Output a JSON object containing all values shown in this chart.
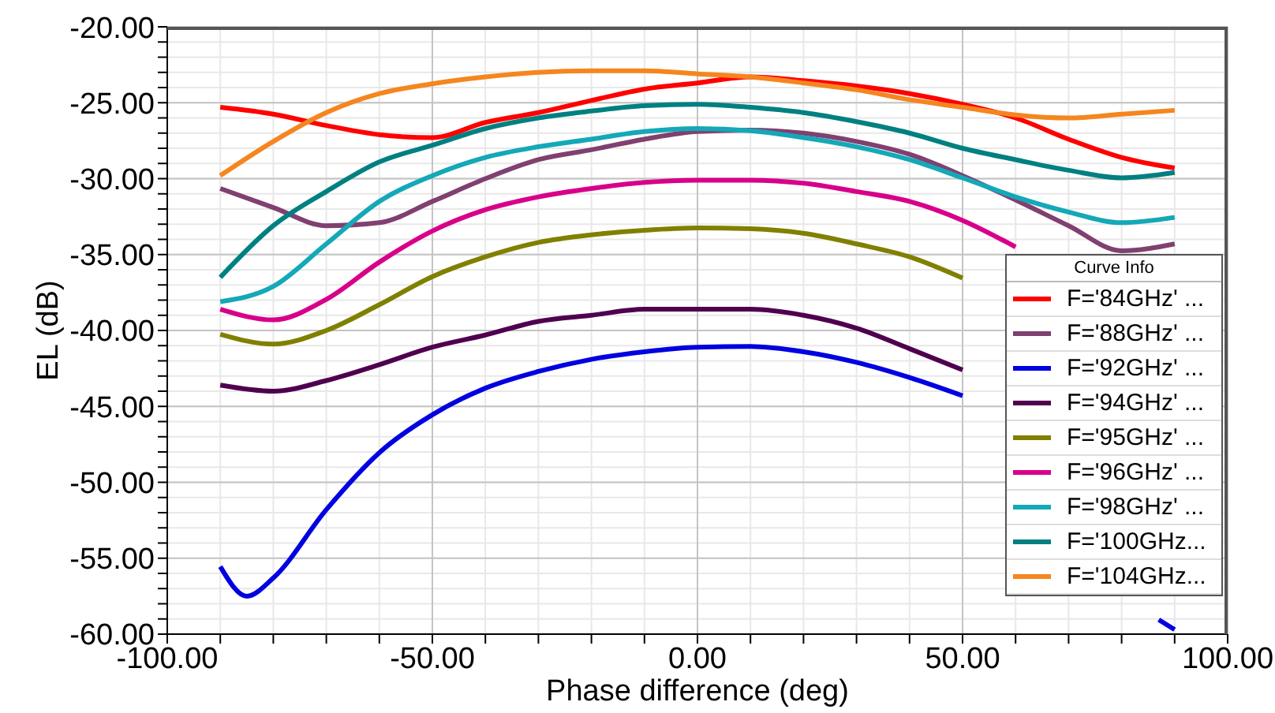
{
  "chart_data": {
    "type": "line",
    "xlabel": "Phase difference (deg)",
    "ylabel": "EL (dB)",
    "legend_title": "Curve Info",
    "legend": "right",
    "grid": true,
    "x": [
      -90,
      -80,
      -70,
      -60,
      -50,
      -40,
      -30,
      -20,
      -10,
      0,
      10,
      20,
      30,
      40,
      50,
      60,
      70,
      80,
      90
    ],
    "xlim": [
      -100,
      100
    ],
    "xticks": [
      {
        "value": -100,
        "label": "-100.00"
      },
      {
        "value": -90,
        "label": null
      },
      {
        "value": -80,
        "label": null
      },
      {
        "value": -70,
        "label": null
      },
      {
        "value": -60,
        "label": null
      },
      {
        "value": -50,
        "label": "-50.00"
      },
      {
        "value": -40,
        "label": null
      },
      {
        "value": -30,
        "label": null
      },
      {
        "value": -20,
        "label": null
      },
      {
        "value": -10,
        "label": null
      },
      {
        "value": 0,
        "label": "0.00"
      },
      {
        "value": 10,
        "label": null
      },
      {
        "value": 20,
        "label": null
      },
      {
        "value": 30,
        "label": null
      },
      {
        "value": 40,
        "label": null
      },
      {
        "value": 50,
        "label": "50.00"
      },
      {
        "value": 60,
        "label": null
      },
      {
        "value": 70,
        "label": null
      },
      {
        "value": 80,
        "label": null
      },
      {
        "value": 90,
        "label": null
      },
      {
        "value": 100,
        "label": "100.00"
      }
    ],
    "ylim": [
      -60,
      -20
    ],
    "yticks": [
      {
        "value": -60,
        "label": "-60.00"
      },
      {
        "value": -59,
        "label": null
      },
      {
        "value": -58,
        "label": null
      },
      {
        "value": -57,
        "label": null
      },
      {
        "value": -56,
        "label": null
      },
      {
        "value": -55,
        "label": "-55.00"
      },
      {
        "value": -54,
        "label": null
      },
      {
        "value": -53,
        "label": null
      },
      {
        "value": -52,
        "label": null
      },
      {
        "value": -51,
        "label": null
      },
      {
        "value": -50,
        "label": "-50.00"
      },
      {
        "value": -49,
        "label": null
      },
      {
        "value": -48,
        "label": null
      },
      {
        "value": -47,
        "label": null
      },
      {
        "value": -46,
        "label": null
      },
      {
        "value": -45,
        "label": "-45.00"
      },
      {
        "value": -44,
        "label": null
      },
      {
        "value": -43,
        "label": null
      },
      {
        "value": -42,
        "label": null
      },
      {
        "value": -41,
        "label": null
      },
      {
        "value": -40,
        "label": "-40.00"
      },
      {
        "value": -39,
        "label": null
      },
      {
        "value": -38,
        "label": null
      },
      {
        "value": -37,
        "label": null
      },
      {
        "value": -36,
        "label": null
      },
      {
        "value": -35,
        "label": "-35.00"
      },
      {
        "value": -34,
        "label": null
      },
      {
        "value": -33,
        "label": null
      },
      {
        "value": -32,
        "label": null
      },
      {
        "value": -31,
        "label": null
      },
      {
        "value": -30,
        "label": "-30.00"
      },
      {
        "value": -29,
        "label": null
      },
      {
        "value": -28,
        "label": null
      },
      {
        "value": -27,
        "label": null
      },
      {
        "value": -26,
        "label": null
      },
      {
        "value": -25,
        "label": "-25.00"
      },
      {
        "value": -24,
        "label": null
      },
      {
        "value": -23,
        "label": null
      },
      {
        "value": -22,
        "label": null
      },
      {
        "value": -21,
        "label": null
      },
      {
        "value": -20,
        "label": "-20.00"
      }
    ],
    "series": [
      {
        "name": "F='84GHz' ...",
        "color": "#ff0000",
        "values": [
          -25.3,
          -25.75,
          -26.5,
          -27.1,
          -27.3,
          -26.3,
          -25.65,
          -24.85,
          -24.1,
          -23.7,
          -23.3,
          -23.55,
          -23.9,
          -24.4,
          -25.1,
          -26.0,
          -27.4,
          -28.6,
          -29.3
        ]
      },
      {
        "name": "F='88GHz' ...",
        "color": "#804070",
        "values": [
          -30.65,
          -31.9,
          -33.1,
          -32.9,
          -31.5,
          -30.0,
          -28.75,
          -28.1,
          -27.4,
          -26.9,
          -26.8,
          -27.0,
          -27.55,
          -28.4,
          -29.8,
          -31.4,
          -33.1,
          -34.75,
          -34.3
        ]
      },
      {
        "name": "F='92GHz' ...",
        "color": "#0000e0",
        "x": [
          -90,
          -85,
          -80,
          -70,
          -60,
          -50,
          -40,
          -30,
          -20,
          -10,
          0,
          10,
          20,
          30,
          40,
          50,
          60,
          87,
          90
        ],
        "values": [
          -55.55,
          -57.5,
          -56.3,
          -51.8,
          -48.05,
          -45.55,
          -43.8,
          -42.7,
          -41.9,
          -41.4,
          -41.1,
          -41.05,
          -41.4,
          -42.1,
          -43.1,
          -44.3,
          null,
          -59.05,
          -59.7
        ]
      },
      {
        "name": "F='94GHz' ...",
        "color": "#4f004f",
        "values": [
          -43.6,
          -44.0,
          -43.3,
          -42.25,
          -41.1,
          -40.3,
          -39.4,
          -39.0,
          -38.6,
          -38.6,
          -38.6,
          -39.0,
          -39.85,
          -41.2,
          -42.6,
          null,
          null,
          null,
          null
        ]
      },
      {
        "name": "F='95GHz' ...",
        "color": "#808000",
        "values": [
          -40.25,
          -40.9,
          -40.0,
          -38.3,
          -36.45,
          -35.15,
          -34.2,
          -33.7,
          -33.4,
          -33.25,
          -33.3,
          -33.6,
          -34.3,
          -35.15,
          -36.55,
          null,
          null,
          null,
          null
        ]
      },
      {
        "name": "F='96GHz' ...",
        "color": "#d8008a",
        "values": [
          -38.6,
          -39.3,
          -37.95,
          -35.5,
          -33.45,
          -32.05,
          -31.2,
          -30.65,
          -30.25,
          -30.1,
          -30.1,
          -30.3,
          -30.85,
          -31.5,
          -32.75,
          -34.5,
          null,
          null,
          null
        ]
      },
      {
        "name": "F='98GHz' ...",
        "color": "#14a8b8",
        "values": [
          -38.1,
          -37.1,
          -34.3,
          -31.5,
          -29.8,
          -28.6,
          -27.9,
          -27.4,
          -26.9,
          -26.7,
          -26.85,
          -27.3,
          -27.9,
          -28.75,
          -29.95,
          -31.2,
          -32.2,
          -32.9,
          -32.55
        ]
      },
      {
        "name": "F='100GHz...",
        "color": "#008080",
        "values": [
          -36.5,
          -33.1,
          -30.85,
          -28.9,
          -27.8,
          -26.7,
          -26.0,
          -25.55,
          -25.2,
          -25.1,
          -25.3,
          -25.65,
          -26.25,
          -27.0,
          -28.0,
          -28.75,
          -29.45,
          -29.95,
          -29.6
        ]
      },
      {
        "name": "F='104GHz...",
        "color": "#f5861f",
        "values": [
          -29.8,
          -27.55,
          -25.65,
          -24.4,
          -23.75,
          -23.3,
          -23.0,
          -22.9,
          -22.9,
          -23.1,
          -23.3,
          -23.7,
          -24.15,
          -24.8,
          -25.3,
          -25.8,
          -26.0,
          -25.75,
          -25.5
        ]
      }
    ]
  }
}
